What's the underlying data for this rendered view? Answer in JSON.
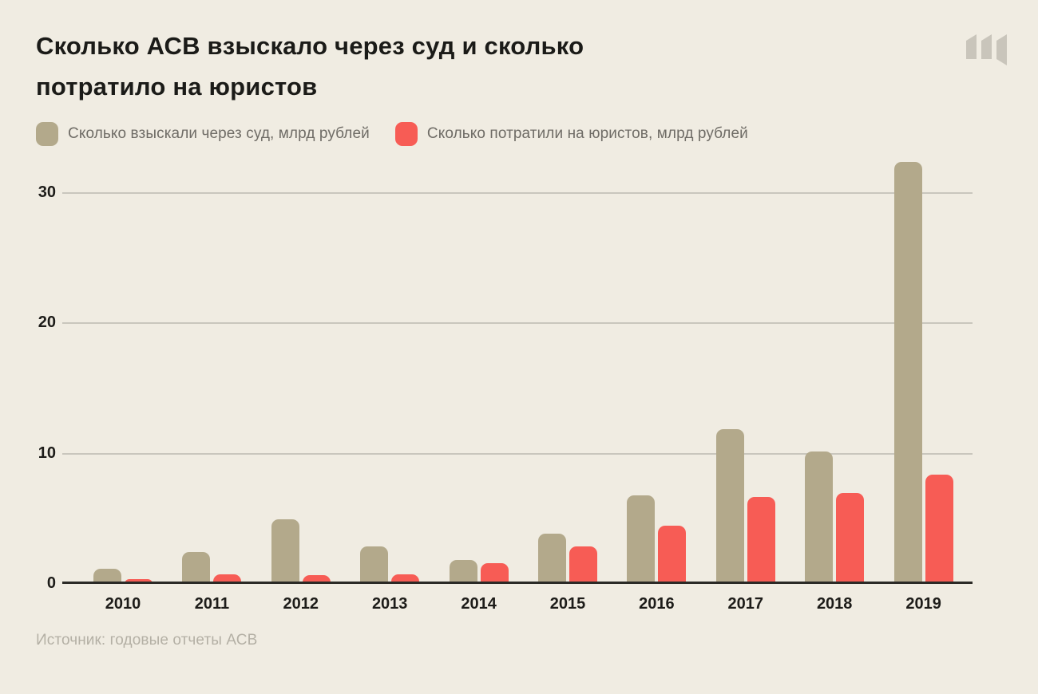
{
  "header": {
    "title_line1": "Сколько АСВ взыскало через суд и сколько",
    "title_line2": "потратило на юристов",
    "logo_name": "meduza-m-logo"
  },
  "legend": [
    {
      "label": "Сколько взыскали через суд, млрд рублей",
      "color": "#b3a98b"
    },
    {
      "label": "Сколько потратили на юристов, млрд рублей",
      "color": "#f75c55"
    }
  ],
  "chart_data": {
    "type": "bar",
    "title": "Сколько АСВ взыскало через суд и сколько потратило на юристов",
    "categories": [
      "2010",
      "2011",
      "2012",
      "2013",
      "2014",
      "2015",
      "2016",
      "2017",
      "2018",
      "2019"
    ],
    "series": [
      {
        "name": "Сколько взыскали через суд, млрд рублей",
        "color": "#b3a98b",
        "values": [
          1.1,
          2.4,
          4.9,
          2.8,
          1.8,
          3.8,
          6.7,
          11.8,
          10.1,
          32.3
        ]
      },
      {
        "name": "Сколько потратили на юристов, млрд рублей",
        "color": "#f75c55",
        "values": [
          0.3,
          0.7,
          0.6,
          0.7,
          1.5,
          2.8,
          4.4,
          6.6,
          6.9,
          8.3
        ]
      }
    ],
    "ylabel": "млрд рублей",
    "ylim": [
      0,
      33
    ],
    "yticks": [
      0,
      10,
      20,
      30
    ],
    "grid": true,
    "legend_position": "top"
  },
  "footer": {
    "source": "Источник: годовые отчеты АСВ"
  },
  "colors": {
    "background": "#f0ece2",
    "gridline": "#c9c6bd",
    "axis": "#2b2a26",
    "title_text": "#1b1b18",
    "legend_text": "#6f6c66",
    "source_text": "#b4b0a5",
    "logo": "#c9c5bb"
  }
}
